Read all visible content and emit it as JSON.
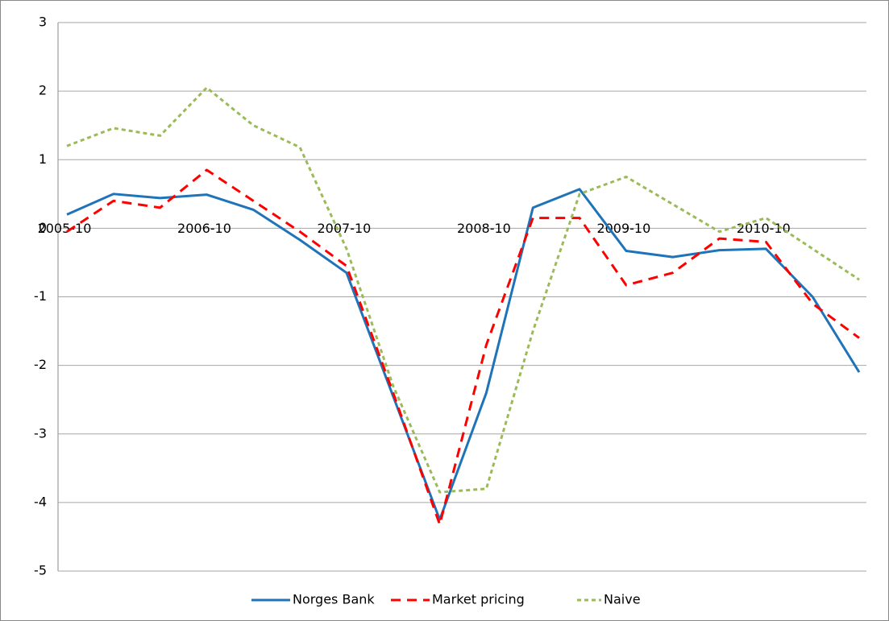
{
  "chart_data": {
    "type": "line",
    "categories": [
      "2005-10",
      null,
      null,
      "2006-10",
      null,
      null,
      "2007-10",
      null,
      null,
      "2008-10",
      null,
      null,
      "2009-10",
      null,
      null,
      "2010-10",
      null,
      null
    ],
    "series": [
      {
        "name": "Norges Bank",
        "color": "#1f73b8",
        "dash": "solid",
        "values": [
          0.2,
          0.5,
          0.44,
          0.49,
          0.27,
          -0.17,
          -0.65,
          -2.45,
          -4.25,
          -2.4,
          0.3,
          0.57,
          -0.33,
          -0.42,
          -0.32,
          -0.3,
          -1.0,
          -2.1
        ]
      },
      {
        "name": "Market pricing",
        "color": "#ff0000",
        "dash": "dashed",
        "values": [
          -0.05,
          0.4,
          0.3,
          0.85,
          0.4,
          -0.05,
          -0.55,
          -2.4,
          -4.32,
          -1.7,
          0.15,
          0.15,
          -0.83,
          -0.65,
          -0.15,
          -0.2,
          -1.1,
          -1.6
        ]
      },
      {
        "name": "Naive",
        "color": "#9bbb59",
        "dash": "dotted",
        "values": [
          1.2,
          1.46,
          1.35,
          2.05,
          1.5,
          1.18,
          -0.3,
          -2.3,
          -3.85,
          -3.8,
          -1.5,
          0.5,
          0.75,
          0.35,
          -0.05,
          0.15,
          -0.3,
          -0.75
        ]
      }
    ],
    "ylim": [
      -5,
      3
    ],
    "yticks": [
      -5,
      -4,
      -3,
      -2,
      -1,
      0,
      1,
      2,
      3
    ],
    "grid": true,
    "legend": "bottom"
  }
}
